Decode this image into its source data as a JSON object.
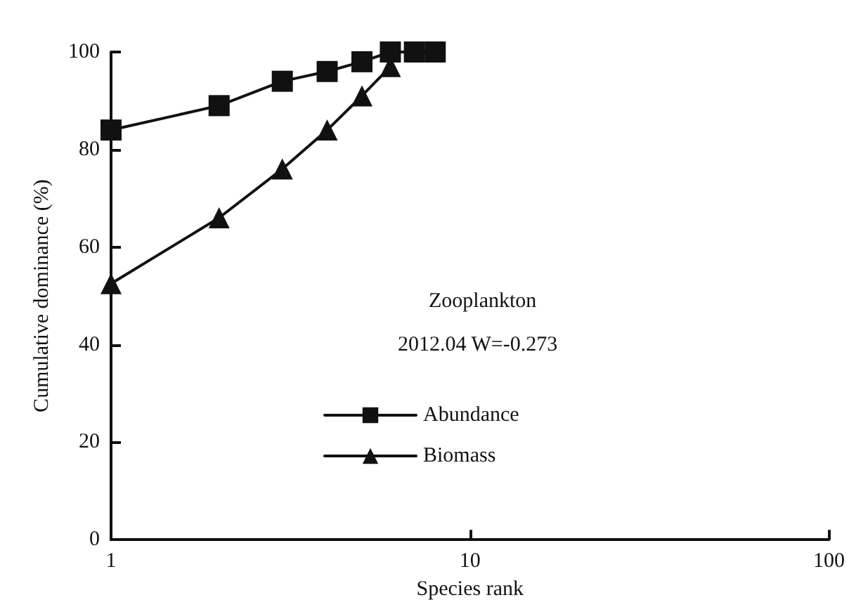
{
  "chart_data": {
    "type": "line",
    "xlabel": "Species rank",
    "ylabel": "Cumulative dominance (%)",
    "annotations": [
      "Zooplankton",
      "2012.04 W=-0.273"
    ],
    "x": [
      1,
      2,
      3,
      4,
      5,
      6,
      7,
      8
    ],
    "series": [
      {
        "name": "Abundance",
        "color": "#111111",
        "marker": "square",
        "values": [
          84,
          89,
          94,
          96,
          98,
          100,
          100,
          100
        ]
      },
      {
        "name": "Biomass",
        "color": "#111111",
        "marker": "triangle",
        "x": [
          1,
          2,
          3,
          4,
          5,
          6
        ],
        "values": [
          52.5,
          66,
          76,
          84,
          91,
          97
        ]
      }
    ],
    "log": "x",
    "xlim": [
      1,
      100
    ],
    "xticks": [
      1,
      10,
      100
    ],
    "ylim": [
      0,
      100
    ],
    "yticks": [
      0,
      20,
      40,
      60,
      80,
      100
    ],
    "grid": false,
    "legend": "center",
    "line_style": "solid"
  }
}
